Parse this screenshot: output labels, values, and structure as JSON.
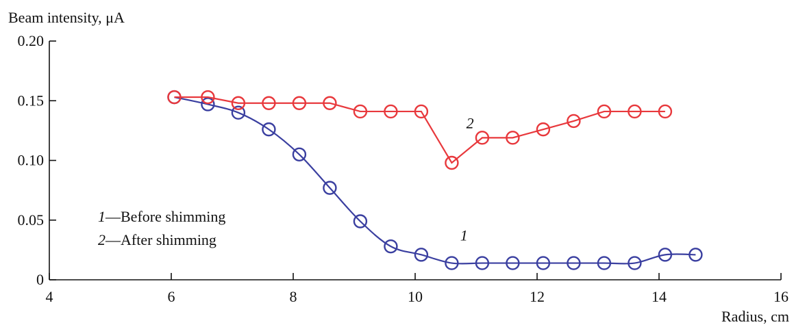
{
  "chart_data": {
    "type": "line",
    "ylabel": "Beam intensity, μA",
    "xlabel": "Radius, cm",
    "xlim": [
      4,
      16
    ],
    "ylim": [
      0,
      0.2
    ],
    "x_ticks": [
      "4",
      "6",
      "8",
      "10",
      "12",
      "14",
      "16"
    ],
    "y_ticks": [
      "0",
      "0.05",
      "0.10",
      "0.15",
      "0.20"
    ],
    "grid": false,
    "legend": {
      "placement": "left",
      "entries": [
        {
          "number": "1",
          "text": "—Before shimming"
        },
        {
          "number": "2",
          "text": "—After shimming"
        }
      ]
    },
    "series": [
      {
        "name": "1",
        "color": "#3a3fa0",
        "x": [
          6.05,
          6.6,
          7.1,
          7.6,
          8.1,
          8.6,
          9.1,
          9.6,
          10.1,
          10.6,
          11.1,
          11.6,
          12.1,
          12.6,
          13.1,
          13.6,
          14.1,
          14.6
        ],
        "y": [
          0.153,
          0.147,
          0.14,
          0.126,
          0.105,
          0.077,
          0.049,
          0.028,
          0.021,
          0.014,
          0.014,
          0.014,
          0.014,
          0.014,
          0.014,
          0.014,
          0.021,
          0.021
        ]
      },
      {
        "name": "2",
        "color": "#e8383c",
        "x": [
          6.05,
          6.6,
          7.1,
          7.6,
          8.1,
          8.6,
          9.1,
          9.6,
          10.1,
          10.6,
          11.1,
          11.6,
          12.1,
          12.6,
          13.1,
          13.6,
          14.1
        ],
        "y": [
          0.153,
          0.153,
          0.148,
          0.148,
          0.148,
          0.148,
          0.141,
          0.141,
          0.141,
          0.098,
          0.119,
          0.119,
          0.126,
          0.133,
          0.141,
          0.141,
          0.141
        ]
      }
    ],
    "annotations": [
      {
        "text": "1",
        "x": 10.8,
        "y": 0.033
      },
      {
        "text": "2",
        "x": 10.9,
        "y": 0.127
      }
    ]
  }
}
